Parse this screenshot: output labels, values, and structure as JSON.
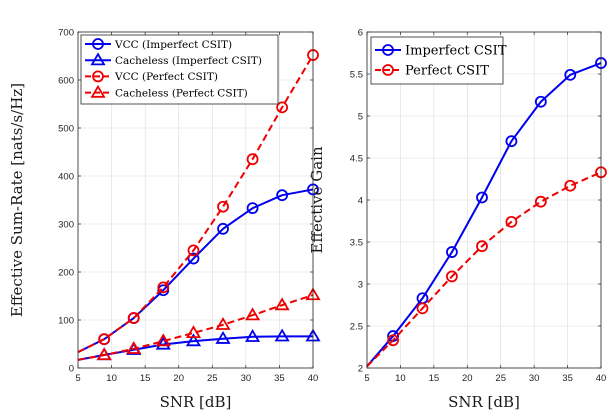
{
  "chart_data": [
    {
      "type": "line",
      "xlabel": "SNR [dB]",
      "ylabel": "Effective Sum-Rate [nats/s/Hz]",
      "xlim": [
        5,
        40
      ],
      "ylim": [
        0,
        700
      ],
      "xticks": [
        5,
        10,
        15,
        20,
        25,
        30,
        35,
        40
      ],
      "yticks": [
        0,
        100,
        200,
        300,
        400,
        500,
        600,
        700
      ],
      "grid": true,
      "legend_position": "top-left",
      "series": [
        {
          "name": "VCC (Imperfect CSIT)",
          "color": "#0000ee",
          "line": "solid",
          "marker": "circle",
          "x": [
            5,
            8.9,
            13.3,
            17.7,
            22.2,
            26.6,
            31.0,
            35.4,
            40
          ],
          "y": [
            33,
            60,
            104,
            162,
            228,
            290,
            333,
            360,
            372
          ]
        },
        {
          "name": "Cacheless (Imperfect CSIT)",
          "color": "#0000ee",
          "line": "solid",
          "marker": "triangle",
          "x": [
            5,
            8.9,
            13.3,
            17.7,
            22.2,
            26.6,
            31.0,
            35.4,
            40
          ],
          "y": [
            17,
            27,
            38,
            49,
            56,
            61,
            65,
            66,
            66
          ]
        },
        {
          "name": "VCC (Perfect CSIT)",
          "color": "#ee0000",
          "line": "dashed",
          "marker": "circle",
          "x": [
            5,
            8.9,
            13.3,
            17.7,
            22.2,
            26.6,
            31.0,
            35.4,
            40
          ],
          "y": [
            33,
            60,
            104,
            168,
            245,
            336,
            435,
            543,
            652
          ]
        },
        {
          "name": "Cacheless (Perfect CSIT)",
          "color": "#ee0000",
          "line": "dashed",
          "marker": "triangle",
          "x": [
            5,
            8.9,
            13.3,
            17.7,
            22.2,
            26.6,
            31.0,
            35.4,
            40
          ],
          "y": [
            17,
            27,
            40,
            56,
            73,
            90,
            110,
            131,
            152
          ]
        }
      ]
    },
    {
      "type": "line",
      "xlabel": "SNR [dB]",
      "ylabel": "Effective Gain",
      "xlim": [
        5,
        40
      ],
      "ylim": [
        2,
        6
      ],
      "xticks": [
        5,
        10,
        15,
        20,
        25,
        30,
        35,
        40
      ],
      "yticks": [
        2,
        2.5,
        3,
        3.5,
        4,
        4.5,
        5,
        5.5,
        6
      ],
      "grid": true,
      "legend_position": "top-left",
      "series": [
        {
          "name": "Imperfect CSIT",
          "color": "#0000ee",
          "line": "solid",
          "marker": "circle",
          "x": [
            5,
            8.9,
            13.3,
            17.7,
            22.2,
            26.6,
            31.0,
            35.4,
            40
          ],
          "y": [
            2.02,
            2.38,
            2.83,
            3.38,
            4.03,
            4.7,
            5.17,
            5.49,
            5.63
          ]
        },
        {
          "name": "Perfect CSIT",
          "color": "#ee0000",
          "line": "dashed",
          "marker": "circle",
          "x": [
            5,
            8.9,
            13.3,
            17.7,
            22.2,
            26.6,
            31.0,
            35.4,
            40
          ],
          "y": [
            2.02,
            2.33,
            2.71,
            3.09,
            3.45,
            3.74,
            3.98,
            4.17,
            4.33
          ]
        }
      ]
    }
  ]
}
